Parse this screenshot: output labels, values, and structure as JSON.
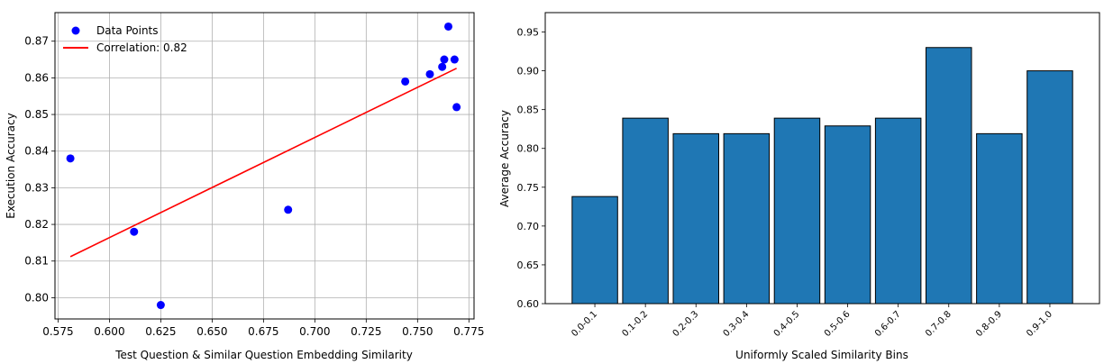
{
  "chart_data": [
    {
      "type": "scatter",
      "xlabel": "Test Question & Similar Question Embedding Similarity",
      "ylabel": "Execution Accuracy",
      "xlim": [
        0.5735,
        0.7775
      ],
      "ylim": [
        0.7942,
        0.8778
      ],
      "xticks": [
        "0.575",
        "0.600",
        "0.625",
        "0.650",
        "0.675",
        "0.700",
        "0.725",
        "0.750",
        "0.775"
      ],
      "yticks": [
        "0.80",
        "0.81",
        "0.82",
        "0.83",
        "0.84",
        "0.85",
        "0.86",
        "0.87"
      ],
      "grid": true,
      "legend_position": "top-left",
      "series": [
        {
          "name": "Data Points",
          "color": "#0000ff",
          "points": [
            {
              "x": 0.581,
              "y": 0.838
            },
            {
              "x": 0.612,
              "y": 0.818
            },
            {
              "x": 0.625,
              "y": 0.798
            },
            {
              "x": 0.687,
              "y": 0.824
            },
            {
              "x": 0.744,
              "y": 0.859
            },
            {
              "x": 0.756,
              "y": 0.861
            },
            {
              "x": 0.762,
              "y": 0.863
            },
            {
              "x": 0.763,
              "y": 0.865
            },
            {
              "x": 0.765,
              "y": 0.874
            },
            {
              "x": 0.768,
              "y": 0.865
            },
            {
              "x": 0.769,
              "y": 0.852
            }
          ]
        }
      ],
      "trend_line": {
        "name": "Correlation: 0.82",
        "color": "#ff0000",
        "points": [
          {
            "x": 0.581,
            "y": 0.8112
          },
          {
            "x": 0.769,
            "y": 0.8626
          }
        ]
      }
    },
    {
      "type": "bar",
      "xlabel": "Uniformly Scaled Similarity Bins",
      "ylabel": "Average Accuracy",
      "ylim": [
        0.6,
        0.975
      ],
      "yticks": [
        "0.60",
        "0.65",
        "0.70",
        "0.75",
        "0.80",
        "0.85",
        "0.90",
        "0.95"
      ],
      "categories": [
        "0.0-0.1",
        "0.1-0.2",
        "0.2-0.3",
        "0.3-0.4",
        "0.4-0.5",
        "0.5-0.6",
        "0.6-0.7",
        "0.7-0.8",
        "0.8-0.9",
        "0.9-1.0"
      ],
      "values": [
        0.738,
        0.839,
        0.819,
        0.819,
        0.839,
        0.829,
        0.839,
        0.93,
        0.819,
        0.9
      ],
      "bar_color": "#1f77b4",
      "grid": false
    }
  ]
}
